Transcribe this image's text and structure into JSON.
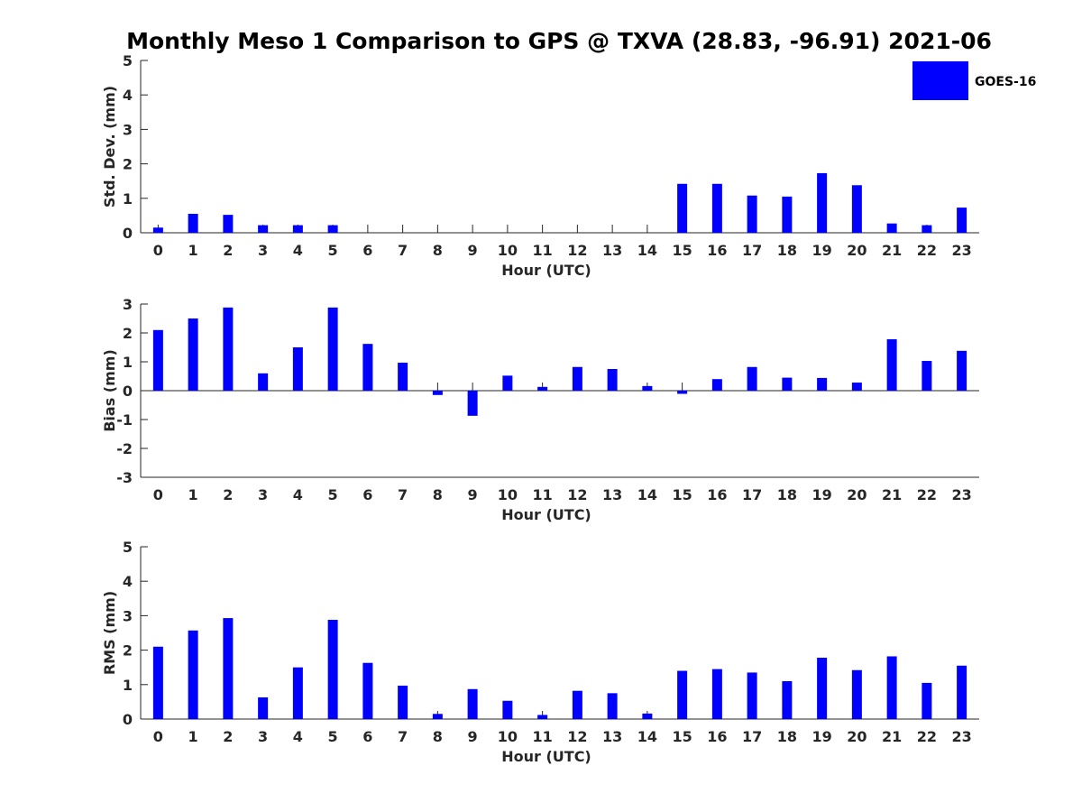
{
  "title": "Monthly Meso 1 Comparison to GPS @ TXVA (28.83, -96.91) 2021-06",
  "legend": {
    "label": "GOES-16",
    "color": "#0000ff",
    "placement": "top-right"
  },
  "chart_data": [
    {
      "type": "bar",
      "ylabel": "Std. Dev. (mm)",
      "xlabel": "Hour (UTC)",
      "ylim": [
        0,
        5
      ],
      "yticks": [
        "0",
        "1",
        "2",
        "3",
        "4",
        "5"
      ],
      "categories": [
        "0",
        "1",
        "2",
        "3",
        "4",
        "5",
        "6",
        "7",
        "8",
        "9",
        "10",
        "11",
        "12",
        "13",
        "14",
        "15",
        "16",
        "17",
        "18",
        "19",
        "20",
        "21",
        "22",
        "23"
      ],
      "series": [
        {
          "name": "GOES-16",
          "color": "#0000ff",
          "values": [
            0.15,
            0.55,
            0.52,
            0.22,
            0.22,
            0.22,
            null,
            null,
            null,
            null,
            null,
            null,
            null,
            null,
            null,
            1.42,
            1.42,
            1.08,
            1.05,
            1.73,
            1.38,
            0.27,
            0.22,
            0.73
          ]
        }
      ]
    },
    {
      "type": "bar",
      "ylabel": "Bias (mm)",
      "xlabel": "Hour (UTC)",
      "ylim": [
        -3,
        3
      ],
      "yticks": [
        "-3",
        "-2",
        "-1",
        "0",
        "1",
        "2",
        "3"
      ],
      "categories": [
        "0",
        "1",
        "2",
        "3",
        "4",
        "5",
        "6",
        "7",
        "8",
        "9",
        "10",
        "11",
        "12",
        "13",
        "14",
        "15",
        "16",
        "17",
        "18",
        "19",
        "20",
        "21",
        "22",
        "23"
      ],
      "series": [
        {
          "name": "GOES-16",
          "color": "#0000ff",
          "values": [
            2.1,
            2.5,
            2.88,
            0.6,
            1.5,
            2.88,
            1.62,
            0.97,
            -0.15,
            -0.87,
            0.52,
            0.13,
            0.82,
            0.75,
            0.16,
            -0.11,
            0.4,
            0.82,
            0.45,
            0.44,
            0.28,
            1.78,
            1.03,
            1.38
          ]
        }
      ]
    },
    {
      "type": "bar",
      "ylabel": "RMS (mm)",
      "xlabel": "Hour (UTC)",
      "ylim": [
        0,
        5
      ],
      "yticks": [
        "0",
        "1",
        "2",
        "3",
        "4",
        "5"
      ],
      "categories": [
        "0",
        "1",
        "2",
        "3",
        "4",
        "5",
        "6",
        "7",
        "8",
        "9",
        "10",
        "11",
        "12",
        "13",
        "14",
        "15",
        "16",
        "17",
        "18",
        "19",
        "20",
        "21",
        "22",
        "23"
      ],
      "series": [
        {
          "name": "GOES-16",
          "color": "#0000ff",
          "values": [
            2.1,
            2.57,
            2.93,
            0.63,
            1.5,
            2.88,
            1.63,
            0.97,
            0.15,
            0.87,
            0.53,
            0.12,
            0.82,
            0.75,
            0.16,
            1.4,
            1.45,
            1.35,
            1.1,
            1.78,
            1.42,
            1.82,
            1.05,
            1.55
          ]
        }
      ]
    }
  ]
}
